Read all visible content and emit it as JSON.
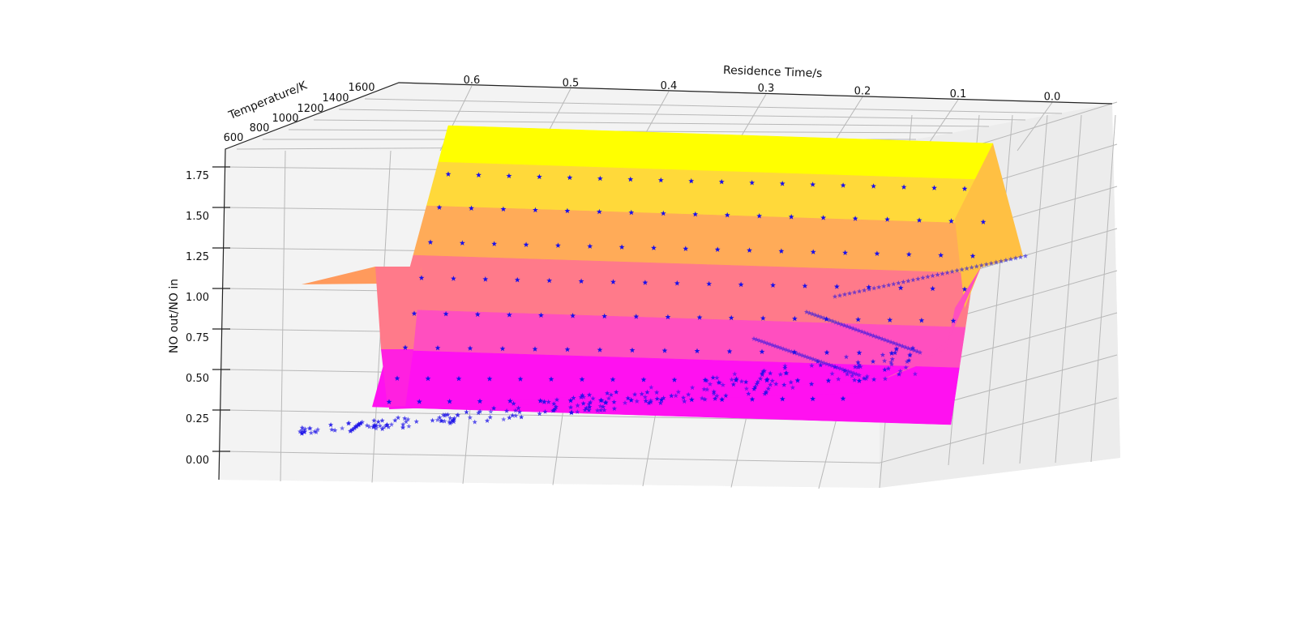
{
  "chart_data": {
    "type": "surface3d",
    "title": "",
    "xlabel": "Residence Time/s",
    "ylabel": "Temperature/K",
    "zlabel": "NO out/NO in",
    "x_ticks": [
      "0.6",
      "0.5",
      "0.4",
      "0.3",
      "0.2",
      "0.1",
      "0.0"
    ],
    "y_ticks": [
      "600",
      "800",
      "1000",
      "1200",
      "1400",
      "1600"
    ],
    "z_ticks": [
      "1.75",
      "1.50",
      "1.25",
      "1.00",
      "0.75",
      "0.50",
      "0.25",
      "0.00"
    ],
    "xlim": [
      0.0,
      0.68
    ],
    "ylim": [
      600,
      1650
    ],
    "zlim": [
      -0.1,
      1.85
    ],
    "surface": {
      "colormap": "spring",
      "residence_time": [
        0.0,
        0.05,
        0.1,
        0.15,
        0.2,
        0.25,
        0.3,
        0.35,
        0.4,
        0.45,
        0.5,
        0.55,
        0.6,
        0.65
      ],
      "temperature": [
        1200,
        1250,
        1300,
        1350,
        1400,
        1450,
        1500,
        1550,
        1600
      ],
      "no_ratio_vs_temperature": [
        1.0,
        0.2,
        0.35,
        0.62,
        1.02,
        1.32,
        1.55,
        1.75,
        1.92
      ],
      "plateau_at_low_temperature": 1.0
    },
    "scatter": {
      "marker": "star",
      "color": "#1a10e8",
      "description_levels": [
        0.1,
        0.35,
        0.5,
        0.75,
        1.05,
        1.28,
        1.5,
        1.72
      ]
    },
    "grid": true,
    "colors": {
      "pane": "#f2f2f2",
      "grid": "#b8b8b8",
      "marker": "#1a10e8"
    }
  }
}
